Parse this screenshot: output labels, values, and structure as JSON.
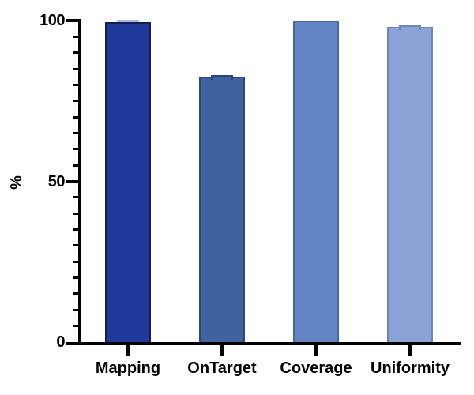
{
  "chart_data": {
    "type": "bar",
    "title": "",
    "xlabel": "",
    "ylabel": "%",
    "ylim": [
      0,
      100
    ],
    "yticks": [
      0,
      50,
      100
    ],
    "minor_tick_step": 5,
    "grid": false,
    "legend": false,
    "categories": [
      "Mapping",
      "OnTarget",
      "Coverage",
      "Uniformity"
    ],
    "values": [
      99.5,
      82.5,
      100,
      98
    ],
    "bar_colors": [
      "#1F3A9A",
      "#3E639F",
      "#6384C5",
      "#8BA2D6"
    ],
    "bar_border_colors": [
      "#14204E",
      "#2B4876",
      "#4A66A3",
      "#6F85B8"
    ],
    "error_caps": [
      true,
      true,
      false,
      true
    ],
    "error_cap_colors": [
      "#A9BAE0",
      "#3E639F",
      null,
      "#8BA2D6"
    ],
    "axis_color": "#000000",
    "background_color": "#FFFFFF"
  }
}
